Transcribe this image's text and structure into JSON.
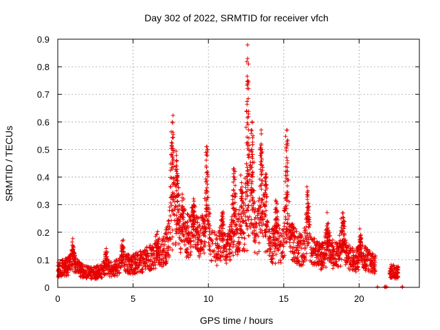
{
  "chart_data": {
    "type": "scatter",
    "title": "Day 302 of 2022, SRMTID for receiver vfch",
    "xlabel": "GPS time / hours",
    "ylabel": "SRMTID / TECUs",
    "xlim": [
      0,
      24
    ],
    "ylim": [
      0,
      0.9
    ],
    "xticks": [
      "0",
      "5",
      "10",
      "15",
      "20"
    ],
    "xtick_values": [
      0,
      5,
      10,
      15,
      20
    ],
    "yticks": [
      "0",
      "0.1",
      "0.2",
      "0.3",
      "0.4",
      "0.5",
      "0.6",
      "0.7",
      "0.8",
      "0.9"
    ],
    "ytick_values": [
      0,
      0.1,
      0.2,
      0.3,
      0.4,
      0.5,
      0.6,
      0.7,
      0.8,
      0.9
    ],
    "grid": true,
    "marker": "+",
    "color": "#e60000",
    "baseline": [
      [
        0,
        0.06
      ],
      [
        0.5,
        0.07
      ],
      [
        1,
        0.08
      ],
      [
        1.5,
        0.06
      ],
      [
        2,
        0.05
      ],
      [
        2.5,
        0.05
      ],
      [
        3,
        0.06
      ],
      [
        3.5,
        0.06
      ],
      [
        4,
        0.07
      ],
      [
        4.5,
        0.08
      ],
      [
        5,
        0.08
      ],
      [
        5.5,
        0.09
      ],
      [
        6,
        0.1
      ],
      [
        6.5,
        0.11
      ],
      [
        7,
        0.12
      ],
      [
        7.5,
        0.18
      ],
      [
        8,
        0.2
      ],
      [
        8.5,
        0.18
      ],
      [
        9,
        0.17
      ],
      [
        9.5,
        0.18
      ],
      [
        10,
        0.16
      ],
      [
        10.5,
        0.13
      ],
      [
        11,
        0.13
      ],
      [
        11.5,
        0.15
      ],
      [
        12,
        0.17
      ],
      [
        12.5,
        0.18
      ],
      [
        13,
        0.19
      ],
      [
        13.5,
        0.18
      ],
      [
        14,
        0.15
      ],
      [
        14.5,
        0.13
      ],
      [
        15,
        0.16
      ],
      [
        15.5,
        0.16
      ],
      [
        16,
        0.13
      ],
      [
        16.5,
        0.14
      ],
      [
        17,
        0.12
      ],
      [
        17.5,
        0.11
      ],
      [
        18,
        0.12
      ],
      [
        18.5,
        0.11
      ],
      [
        19,
        0.12
      ],
      [
        19.5,
        0.1
      ],
      [
        20,
        0.09
      ],
      [
        20.5,
        0.1
      ],
      [
        21,
        0.08
      ],
      [
        21.5,
        0.07
      ],
      [
        22,
        0.06
      ],
      [
        22.5,
        0.05
      ],
      [
        22.9,
        0.06
      ]
    ],
    "spikes": [
      {
        "x": 1.0,
        "peak": 0.15
      },
      {
        "x": 3.2,
        "peak": 0.12
      },
      {
        "x": 4.3,
        "peak": 0.15
      },
      {
        "x": 6.6,
        "peak": 0.16
      },
      {
        "x": 7.6,
        "peak": 0.6
      },
      {
        "x": 7.9,
        "peak": 0.46
      },
      {
        "x": 8.3,
        "peak": 0.28
      },
      {
        "x": 9.0,
        "peak": 0.3
      },
      {
        "x": 9.9,
        "peak": 0.51
      },
      {
        "x": 10.9,
        "peak": 0.27
      },
      {
        "x": 11.7,
        "peak": 0.43
      },
      {
        "x": 12.2,
        "peak": 0.38
      },
      {
        "x": 12.6,
        "peak": 0.83
      },
      {
        "x": 12.9,
        "peak": 0.6
      },
      {
        "x": 13.5,
        "peak": 0.52
      },
      {
        "x": 13.8,
        "peak": 0.41
      },
      {
        "x": 14.5,
        "peak": 0.31
      },
      {
        "x": 15.2,
        "peak": 0.57
      },
      {
        "x": 16.6,
        "peak": 0.35
      },
      {
        "x": 17.9,
        "peak": 0.23
      },
      {
        "x": 18.9,
        "peak": 0.27
      },
      {
        "x": 20.1,
        "peak": 0.19
      }
    ],
    "gaps": [
      [
        21.1,
        22.0
      ],
      [
        22.6,
        22.9
      ]
    ],
    "points_generated": 2600
  }
}
